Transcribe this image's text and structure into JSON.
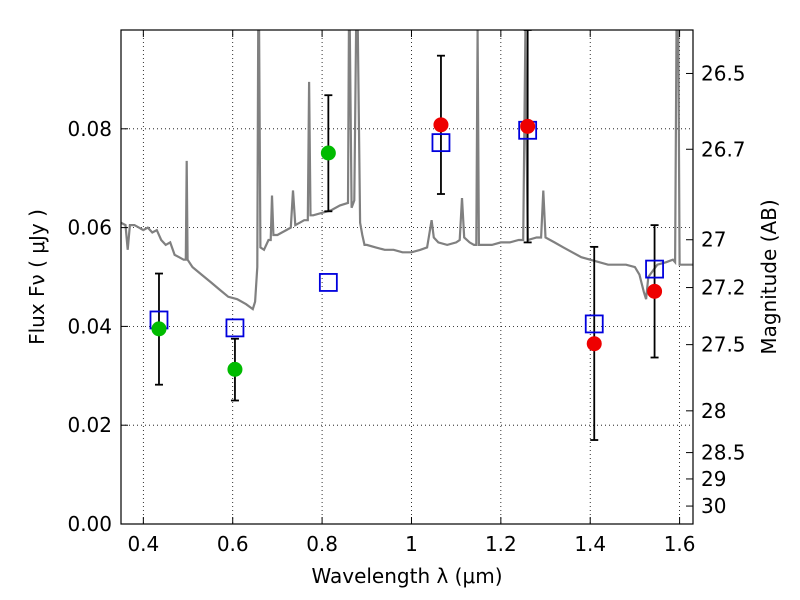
{
  "chart_data": {
    "type": "scatter",
    "xlabel": "Wavelength  λ (μm)",
    "ylabel": "Flux  Fν  ( μJy )",
    "y2label": "Magnitude (AB)",
    "xlim": [
      0.35,
      1.63
    ],
    "ylim": [
      0.0,
      0.1
    ],
    "grid": true,
    "x_ticks": [
      0.4,
      0.6,
      0.8,
      1.0,
      1.2,
      1.4,
      1.6
    ],
    "x_tick_labels": [
      "0.4",
      "0.6",
      "0.8",
      "1",
      "1.2",
      "1.4",
      "1.6"
    ],
    "y_ticks": [
      0.0,
      0.02,
      0.04,
      0.06,
      0.08
    ],
    "y_tick_labels": [
      "0.00",
      "0.02",
      "0.04",
      "0.06",
      "0.08"
    ],
    "y2_tick_labels": [
      "26.5",
      "26.7",
      "27",
      "27.2",
      "27.5",
      "28",
      "28.5",
      "29",
      "30"
    ],
    "colors": {
      "spectrum": "#808080",
      "green_points": "#00bb00",
      "red_points": "#ee0000",
      "model_squares": "#0000dd",
      "error_bars": "#000000"
    },
    "series": [
      {
        "kind": "model spectrum line",
        "points": [
          [
            0.35,
            0.061
          ],
          [
            0.36,
            0.0605
          ],
          [
            0.365,
            0.0555
          ],
          [
            0.37,
            0.0605
          ],
          [
            0.38,
            0.0605
          ],
          [
            0.39,
            0.06
          ],
          [
            0.4,
            0.0595
          ],
          [
            0.41,
            0.06
          ],
          [
            0.42,
            0.059
          ],
          [
            0.43,
            0.0595
          ],
          [
            0.44,
            0.0575
          ],
          [
            0.45,
            0.0565
          ],
          [
            0.46,
            0.057
          ],
          [
            0.47,
            0.0545
          ],
          [
            0.48,
            0.054
          ],
          [
            0.49,
            0.0535
          ],
          [
            0.495,
            0.0535
          ],
          [
            0.497,
            0.0735
          ],
          [
            0.499,
            0.0535
          ],
          [
            0.51,
            0.052
          ],
          [
            0.53,
            0.0505
          ],
          [
            0.55,
            0.049
          ],
          [
            0.57,
            0.0475
          ],
          [
            0.59,
            0.046
          ],
          [
            0.61,
            0.0455
          ],
          [
            0.63,
            0.0445
          ],
          [
            0.645,
            0.0435
          ],
          [
            0.65,
            0.045
          ],
          [
            0.655,
            0.052
          ],
          [
            0.657,
            0.1
          ],
          [
            0.659,
            0.1
          ],
          [
            0.662,
            0.056
          ],
          [
            0.67,
            0.0555
          ],
          [
            0.68,
            0.0575
          ],
          [
            0.685,
            0.0575
          ],
          [
            0.688,
            0.0665
          ],
          [
            0.691,
            0.0585
          ],
          [
            0.7,
            0.0585
          ],
          [
            0.71,
            0.059
          ],
          [
            0.72,
            0.0595
          ],
          [
            0.73,
            0.06
          ],
          [
            0.735,
            0.0675
          ],
          [
            0.74,
            0.0605
          ],
          [
            0.75,
            0.061
          ],
          [
            0.76,
            0.0615
          ],
          [
            0.768,
            0.0615
          ],
          [
            0.771,
            0.0895
          ],
          [
            0.774,
            0.0625
          ],
          [
            0.78,
            0.0625
          ],
          [
            0.8,
            0.063
          ],
          [
            0.82,
            0.0635
          ],
          [
            0.84,
            0.0645
          ],
          [
            0.858,
            0.065
          ],
          [
            0.86,
            0.1
          ],
          [
            0.862,
            0.1
          ],
          [
            0.866,
            0.064
          ],
          [
            0.872,
            0.0655
          ],
          [
            0.876,
            0.1
          ],
          [
            0.88,
            0.1
          ],
          [
            0.885,
            0.061
          ],
          [
            0.89,
            0.0585
          ],
          [
            0.895,
            0.0565
          ],
          [
            0.9,
            0.0565
          ],
          [
            0.92,
            0.056
          ],
          [
            0.94,
            0.0555
          ],
          [
            0.96,
            0.0555
          ],
          [
            0.98,
            0.055
          ],
          [
            1.0,
            0.055
          ],
          [
            1.02,
            0.0555
          ],
          [
            1.035,
            0.056
          ],
          [
            1.045,
            0.0615
          ],
          [
            1.05,
            0.058
          ],
          [
            1.06,
            0.057
          ],
          [
            1.08,
            0.0565
          ],
          [
            1.1,
            0.057
          ],
          [
            1.108,
            0.0575
          ],
          [
            1.113,
            0.066
          ],
          [
            1.118,
            0.058
          ],
          [
            1.13,
            0.057
          ],
          [
            1.14,
            0.0565
          ],
          [
            1.145,
            0.0565
          ],
          [
            1.148,
            0.1
          ],
          [
            1.151,
            0.0565
          ],
          [
            1.16,
            0.0565
          ],
          [
            1.18,
            0.0565
          ],
          [
            1.2,
            0.057
          ],
          [
            1.22,
            0.057
          ],
          [
            1.24,
            0.0575
          ],
          [
            1.25,
            0.0575
          ],
          [
            1.255,
            0.1
          ],
          [
            1.26,
            0.0575
          ],
          [
            1.28,
            0.058
          ],
          [
            1.29,
            0.058
          ],
          [
            1.295,
            0.0675
          ],
          [
            1.3,
            0.058
          ],
          [
            1.32,
            0.057
          ],
          [
            1.34,
            0.056
          ],
          [
            1.36,
            0.055
          ],
          [
            1.38,
            0.054
          ],
          [
            1.4,
            0.0535
          ],
          [
            1.42,
            0.053
          ],
          [
            1.44,
            0.0525
          ],
          [
            1.46,
            0.0525
          ],
          [
            1.48,
            0.0525
          ],
          [
            1.5,
            0.052
          ],
          [
            1.51,
            0.0505
          ],
          [
            1.52,
            0.047
          ],
          [
            1.525,
            0.0455
          ],
          [
            1.53,
            0.05
          ],
          [
            1.55,
            0.0525
          ],
          [
            1.57,
            0.053
          ],
          [
            1.585,
            0.0535
          ],
          [
            1.59,
            0.053
          ],
          [
            1.593,
            0.1
          ],
          [
            1.597,
            0.1
          ],
          [
            1.6,
            0.0525
          ],
          [
            1.61,
            0.0525
          ],
          [
            1.62,
            0.0525
          ],
          [
            1.63,
            0.0525
          ]
        ]
      },
      {
        "kind": "observed points (green)",
        "points": [
          {
            "x": 0.435,
            "y": 0.0395,
            "yerr_low": 0.0282,
            "yerr_high": 0.0507
          },
          {
            "x": 0.605,
            "y": 0.0313,
            "yerr_low": 0.025,
            "yerr_high": 0.0375
          },
          {
            "x": 0.814,
            "y": 0.0751,
            "yerr_low": 0.0633,
            "yerr_high": 0.0868
          }
        ]
      },
      {
        "kind": "observed points (red)",
        "points": [
          {
            "x": 1.066,
            "y": 0.0808,
            "yerr_low": 0.0668,
            "yerr_high": 0.0948
          },
          {
            "x": 1.26,
            "y": 0.0805,
            "yerr_low": 0.057,
            "yerr_high": 0.1
          },
          {
            "x": 1.409,
            "y": 0.0365,
            "yerr_low": 0.017,
            "yerr_high": 0.0561
          },
          {
            "x": 1.544,
            "y": 0.0471,
            "yerr_low": 0.0337,
            "yerr_high": 0.0605
          }
        ]
      },
      {
        "kind": "model band fluxes (squares)",
        "points": [
          {
            "x": 0.435,
            "y": 0.0413
          },
          {
            "x": 0.605,
            "y": 0.0397
          },
          {
            "x": 0.814,
            "y": 0.0489
          },
          {
            "x": 1.066,
            "y": 0.0772
          },
          {
            "x": 1.26,
            "y": 0.0797
          },
          {
            "x": 1.409,
            "y": 0.0405
          },
          {
            "x": 1.544,
            "y": 0.0516
          }
        ]
      }
    ]
  }
}
